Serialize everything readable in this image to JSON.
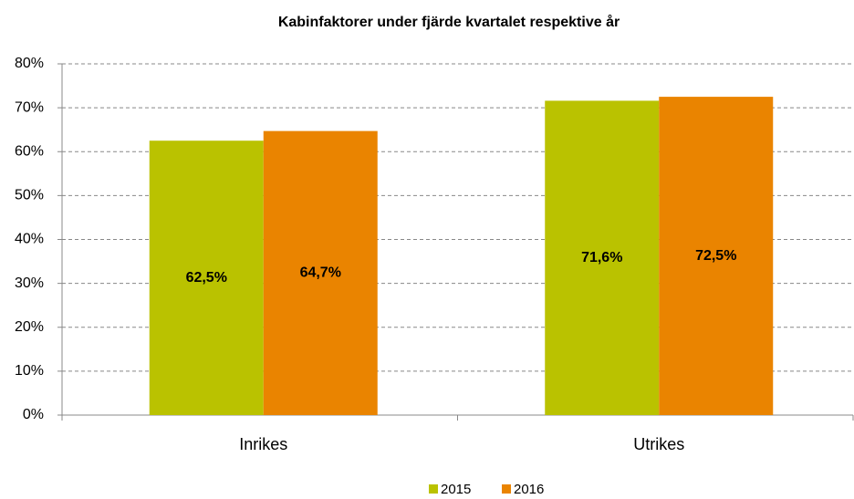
{
  "chart_data": {
    "type": "bar",
    "title": "Kabinfaktorer under fjärde kvartalet respektive år",
    "categories": [
      "Inrikes",
      "Utrikes"
    ],
    "series": [
      {
        "name": "2015",
        "color": "#bac200",
        "values": [
          62.5,
          71.6
        ],
        "value_labels": [
          "62,5%",
          "71,6%"
        ]
      },
      {
        "name": "2016",
        "color": "#ea8400",
        "values": [
          64.7,
          72.5
        ],
        "value_labels": [
          "64,7%",
          "72,5%"
        ]
      }
    ],
    "ylim": [
      0,
      80
    ],
    "yticks": [
      {
        "value": 0,
        "label": "0%"
      },
      {
        "value": 10,
        "label": "10%"
      },
      {
        "value": 20,
        "label": "20%"
      },
      {
        "value": 30,
        "label": "30%"
      },
      {
        "value": 40,
        "label": "40%"
      },
      {
        "value": 50,
        "label": "50%"
      },
      {
        "value": 60,
        "label": "60%"
      },
      {
        "value": 70,
        "label": "70%"
      },
      {
        "value": 80,
        "label": "80%"
      }
    ],
    "grid": true,
    "legend": "bottom"
  }
}
